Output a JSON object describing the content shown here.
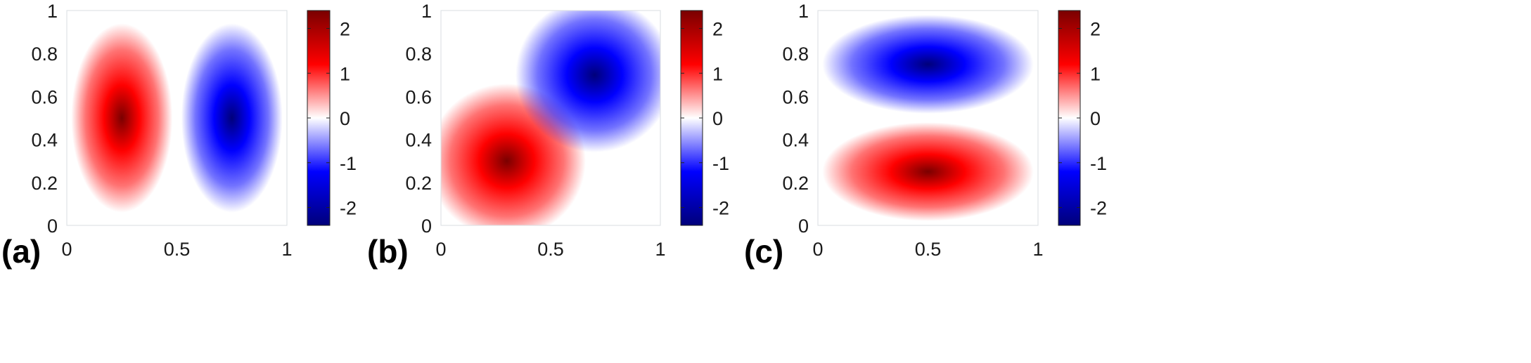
{
  "chart_data": [
    {
      "type": "heatmap",
      "panel_label": "(a)",
      "x_ticks": [
        "0",
        "0.5",
        "1"
      ],
      "y_ticks": [
        "0",
        "0.2",
        "0.4",
        "0.6",
        "0.8",
        "1"
      ],
      "xlim": [
        0,
        1
      ],
      "ylim": [
        0,
        1
      ],
      "colorbar": {
        "ticks": [
          "2",
          "1",
          "0",
          "-1",
          "-2"
        ],
        "range": [
          -2.4,
          2.4
        ],
        "colormap": "blue-white-red"
      },
      "field": {
        "description_values": "positive lobe centered x=0.25,y=0.5 (max ~2.4); negative lobe centered x=0.75,y=0.5 (min ~-2.2)"
      },
      "extrema": [
        {
          "x": 0.25,
          "y": 0.5,
          "value": 2.4
        },
        {
          "x": 0.75,
          "y": 0.5,
          "value": -2.2
        }
      ]
    },
    {
      "type": "heatmap",
      "panel_label": "(b)",
      "x_ticks": [
        "0",
        "0.5",
        "1"
      ],
      "y_ticks": [
        "0",
        "0.2",
        "0.4",
        "0.6",
        "0.8",
        "1"
      ],
      "xlim": [
        0,
        1
      ],
      "ylim": [
        0,
        1
      ],
      "colorbar": {
        "ticks": [
          "2",
          "1",
          "0",
          "-1",
          "-2"
        ],
        "range": [
          -2.4,
          2.4
        ],
        "colormap": "blue-white-red"
      },
      "extrema": [
        {
          "x": 0.3,
          "y": 0.3,
          "value": 2.4
        },
        {
          "x": 0.7,
          "y": 0.7,
          "value": -2.2
        }
      ]
    },
    {
      "type": "heatmap",
      "panel_label": "(c)",
      "x_ticks": [
        "0",
        "0.5",
        "1"
      ],
      "y_ticks": [
        "0",
        "0.2",
        "0.4",
        "0.6",
        "0.8",
        "1"
      ],
      "xlim": [
        0,
        1
      ],
      "ylim": [
        0,
        1
      ],
      "colorbar": {
        "ticks": [
          "2",
          "1",
          "0",
          "-1",
          "-2"
        ],
        "range": [
          -2.4,
          2.4
        ],
        "colormap": "blue-white-red"
      },
      "extrema": [
        {
          "x": 0.5,
          "y": 0.25,
          "value": 2.4
        },
        {
          "x": 0.5,
          "y": 0.75,
          "value": -2.2
        }
      ]
    }
  ],
  "colors": {
    "dark_red": "#7a0000",
    "red": "#ff0000",
    "white": "#ffffff",
    "blue": "#0000ff",
    "dark_blue": "#00007a"
  }
}
